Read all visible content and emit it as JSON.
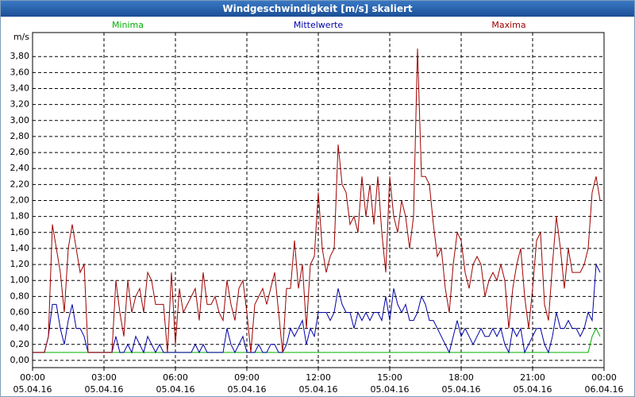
{
  "chart_data": {
    "type": "line",
    "title": "Windgeschwindigkeit [m/s] skaliert",
    "y_label": "m/s",
    "legend": "top",
    "grid": true,
    "xlim": [
      0,
      1440
    ],
    "xticks": [
      {
        "value": 0,
        "label": "00:00\n05.04.16"
      },
      {
        "value": 180,
        "label": "03:00\n05.04.16"
      },
      {
        "value": 360,
        "label": "06:00\n05.04.16"
      },
      {
        "value": 540,
        "label": "09:00\n05.04.16"
      },
      {
        "value": 720,
        "label": "12:00\n05.04.16"
      },
      {
        "value": 900,
        "label": "15:00\n05.04.16"
      },
      {
        "value": 1080,
        "label": "18:00\n05.04.16"
      },
      {
        "value": 1260,
        "label": "21:00\n05.04.16"
      },
      {
        "value": 1440,
        "label": "00:00\n06.04.16"
      }
    ],
    "ylim": [
      -0.09,
      4.1
    ],
    "yticks": [
      {
        "value": 0,
        "label": "0,00"
      },
      {
        "value": 0.2,
        "label": "0,20"
      },
      {
        "value": 0.4,
        "label": "0,40"
      },
      {
        "value": 0.6,
        "label": "0,60"
      },
      {
        "value": 0.8,
        "label": "0,80"
      },
      {
        "value": 1.0,
        "label": "1,00"
      },
      {
        "value": 1.2,
        "label": "1,20"
      },
      {
        "value": 1.4,
        "label": "1,40"
      },
      {
        "value": 1.6,
        "label": "1,60"
      },
      {
        "value": 1.8,
        "label": "1,80"
      },
      {
        "value": 2.0,
        "label": "2,00"
      },
      {
        "value": 2.2,
        "label": "2,20"
      },
      {
        "value": 2.4,
        "label": "2,40"
      },
      {
        "value": 2.6,
        "label": "2,60"
      },
      {
        "value": 2.8,
        "label": "2,80"
      },
      {
        "value": 3.0,
        "label": "3,00"
      },
      {
        "value": 3.2,
        "label": "3,20"
      },
      {
        "value": 3.4,
        "label": "3,40"
      },
      {
        "value": 3.6,
        "label": "3,60"
      },
      {
        "value": 3.8,
        "label": "3,80"
      }
    ],
    "x": [
      0,
      10,
      20,
      30,
      40,
      50,
      60,
      70,
      80,
      90,
      100,
      110,
      120,
      130,
      140,
      150,
      160,
      170,
      180,
      190,
      200,
      210,
      220,
      230,
      240,
      250,
      260,
      270,
      280,
      290,
      300,
      310,
      320,
      330,
      340,
      350,
      360,
      370,
      380,
      390,
      400,
      410,
      420,
      430,
      440,
      450,
      460,
      470,
      480,
      490,
      500,
      510,
      520,
      530,
      540,
      550,
      560,
      570,
      580,
      590,
      600,
      610,
      620,
      630,
      640,
      650,
      660,
      670,
      680,
      690,
      700,
      710,
      720,
      730,
      740,
      750,
      760,
      770,
      780,
      790,
      800,
      810,
      820,
      830,
      840,
      850,
      860,
      870,
      880,
      890,
      900,
      910,
      920,
      930,
      940,
      950,
      960,
      970,
      980,
      990,
      1000,
      1010,
      1020,
      1030,
      1040,
      1050,
      1060,
      1070,
      1080,
      1090,
      1100,
      1110,
      1120,
      1130,
      1140,
      1150,
      1160,
      1170,
      1180,
      1190,
      1200,
      1210,
      1220,
      1230,
      1240,
      1250,
      1260,
      1270,
      1280,
      1290,
      1300,
      1310,
      1320,
      1330,
      1340,
      1350,
      1360,
      1370,
      1380,
      1390,
      1400,
      1410,
      1420,
      1430
    ],
    "series": [
      {
        "name": "Minima",
        "color": "#00b000",
        "values": [
          0.1,
          0.1,
          0.1,
          0.1,
          0.1,
          0.1,
          0.1,
          0.1,
          0.1,
          0.1,
          0.1,
          0.1,
          0.1,
          0.1,
          0.1,
          0.1,
          0.1,
          0.1,
          0.1,
          0.1,
          0.1,
          0.1,
          0.1,
          0.1,
          0.1,
          0.1,
          0.1,
          0.1,
          0.1,
          0.1,
          0.1,
          0.1,
          0.1,
          0.1,
          0.1,
          0.1,
          0.1,
          0.1,
          0.1,
          0.1,
          0.1,
          0.1,
          0.1,
          0.1,
          0.1,
          0.1,
          0.1,
          0.1,
          0.1,
          0.1,
          0.1,
          0.1,
          0.1,
          0.1,
          0.1,
          0.1,
          0.1,
          0.1,
          0.1,
          0.1,
          0.1,
          0.1,
          0.1,
          0.1,
          0.1,
          0.1,
          0.1,
          0.1,
          0.1,
          0.1,
          0.1,
          0.1,
          0.1,
          0.1,
          0.1,
          0.1,
          0.1,
          0.1,
          0.1,
          0.1,
          0.1,
          0.1,
          0.1,
          0.1,
          0.1,
          0.1,
          0.1,
          0.1,
          0.1,
          0.1,
          0.1,
          0.1,
          0.1,
          0.1,
          0.1,
          0.1,
          0.1,
          0.1,
          0.1,
          0.1,
          0.1,
          0.1,
          0.1,
          0.1,
          0.1,
          0.1,
          0.1,
          0.1,
          0.1,
          0.1,
          0.1,
          0.1,
          0.1,
          0.1,
          0.1,
          0.1,
          0.1,
          0.1,
          0.1,
          0.1,
          0.1,
          0.1,
          0.1,
          0.1,
          0.1,
          0.1,
          0.1,
          0.1,
          0.1,
          0.1,
          0.1,
          0.1,
          0.1,
          0.1,
          0.1,
          0.1,
          0.1,
          0.1,
          0.1,
          0.1,
          0.1,
          0.3,
          0.4,
          0.3
        ]
      },
      {
        "name": "Mittelwerte",
        "color": "#0000a8",
        "values": [
          0.1,
          0.1,
          0.1,
          0.1,
          0.3,
          0.7,
          0.7,
          0.4,
          0.2,
          0.5,
          0.7,
          0.4,
          0.4,
          0.3,
          0.1,
          0.1,
          0.1,
          0.1,
          0.1,
          0.1,
          0.1,
          0.3,
          0.1,
          0.1,
          0.2,
          0.1,
          0.3,
          0.2,
          0.1,
          0.3,
          0.2,
          0.1,
          0.2,
          0.1,
          0.1,
          0.1,
          0.1,
          0.1,
          0.1,
          0.1,
          0.1,
          0.2,
          0.1,
          0.2,
          0.1,
          0.1,
          0.1,
          0.1,
          0.1,
          0.4,
          0.2,
          0.1,
          0.2,
          0.3,
          0.1,
          0.1,
          0.1,
          0.2,
          0.1,
          0.1,
          0.2,
          0.2,
          0.1,
          0.1,
          0.2,
          0.4,
          0.3,
          0.4,
          0.5,
          0.2,
          0.4,
          0.3,
          0.6,
          0.6,
          0.6,
          0.5,
          0.6,
          0.9,
          0.7,
          0.6,
          0.6,
          0.4,
          0.6,
          0.5,
          0.6,
          0.5,
          0.6,
          0.6,
          0.5,
          0.8,
          0.5,
          0.9,
          0.7,
          0.6,
          0.7,
          0.5,
          0.5,
          0.6,
          0.8,
          0.7,
          0.5,
          0.5,
          0.4,
          0.3,
          0.2,
          0.1,
          0.3,
          0.5,
          0.3,
          0.4,
          0.3,
          0.2,
          0.3,
          0.4,
          0.3,
          0.3,
          0.4,
          0.3,
          0.4,
          0.2,
          0.1,
          0.4,
          0.3,
          0.4,
          0.1,
          0.2,
          0.3,
          0.4,
          0.4,
          0.2,
          0.1,
          0.3,
          0.6,
          0.4,
          0.4,
          0.5,
          0.4,
          0.4,
          0.3,
          0.4,
          0.6,
          0.5,
          1.2,
          1.1
        ]
      },
      {
        "name": "Maxima",
        "color": "#a00000",
        "values": [
          0.1,
          0.1,
          0.1,
          0.1,
          0.3,
          1.7,
          1.4,
          1.1,
          0.6,
          1.4,
          1.7,
          1.4,
          1.1,
          1.2,
          0.1,
          0.1,
          0.1,
          0.1,
          0.1,
          0.1,
          0.1,
          1.0,
          0.6,
          0.3,
          1.0,
          0.6,
          0.8,
          0.9,
          0.6,
          1.1,
          1.0,
          0.7,
          0.7,
          0.7,
          0.1,
          1.1,
          0.2,
          0.9,
          0.6,
          0.7,
          0.8,
          0.9,
          0.5,
          1.1,
          0.7,
          0.7,
          0.8,
          0.6,
          0.5,
          1.0,
          0.7,
          0.5,
          0.9,
          1.0,
          0.6,
          0.1,
          0.7,
          0.8,
          0.9,
          0.7,
          0.9,
          1.1,
          0.6,
          0.1,
          0.9,
          0.9,
          1.5,
          0.9,
          1.2,
          0.4,
          1.2,
          1.3,
          2.1,
          1.4,
          1.1,
          1.3,
          1.4,
          2.7,
          2.2,
          2.1,
          1.7,
          1.8,
          1.6,
          2.3,
          1.8,
          2.2,
          1.7,
          2.3,
          1.6,
          1.1,
          2.3,
          1.8,
          1.6,
          2.0,
          1.8,
          1.4,
          1.8,
          3.9,
          2.3,
          2.3,
          2.2,
          1.7,
          1.3,
          1.4,
          0.9,
          0.6,
          1.2,
          1.6,
          1.5,
          1.1,
          0.9,
          1.2,
          1.3,
          1.2,
          0.8,
          1.0,
          1.1,
          1.0,
          1.2,
          1.0,
          0.4,
          0.9,
          1.2,
          1.4,
          0.8,
          0.4,
          0.9,
          1.5,
          1.6,
          0.7,
          0.5,
          1.2,
          1.8,
          1.4,
          0.9,
          1.4,
          1.1,
          1.1,
          1.1,
          1.2,
          1.4,
          2.1,
          2.3,
          2.0
        ]
      }
    ]
  }
}
